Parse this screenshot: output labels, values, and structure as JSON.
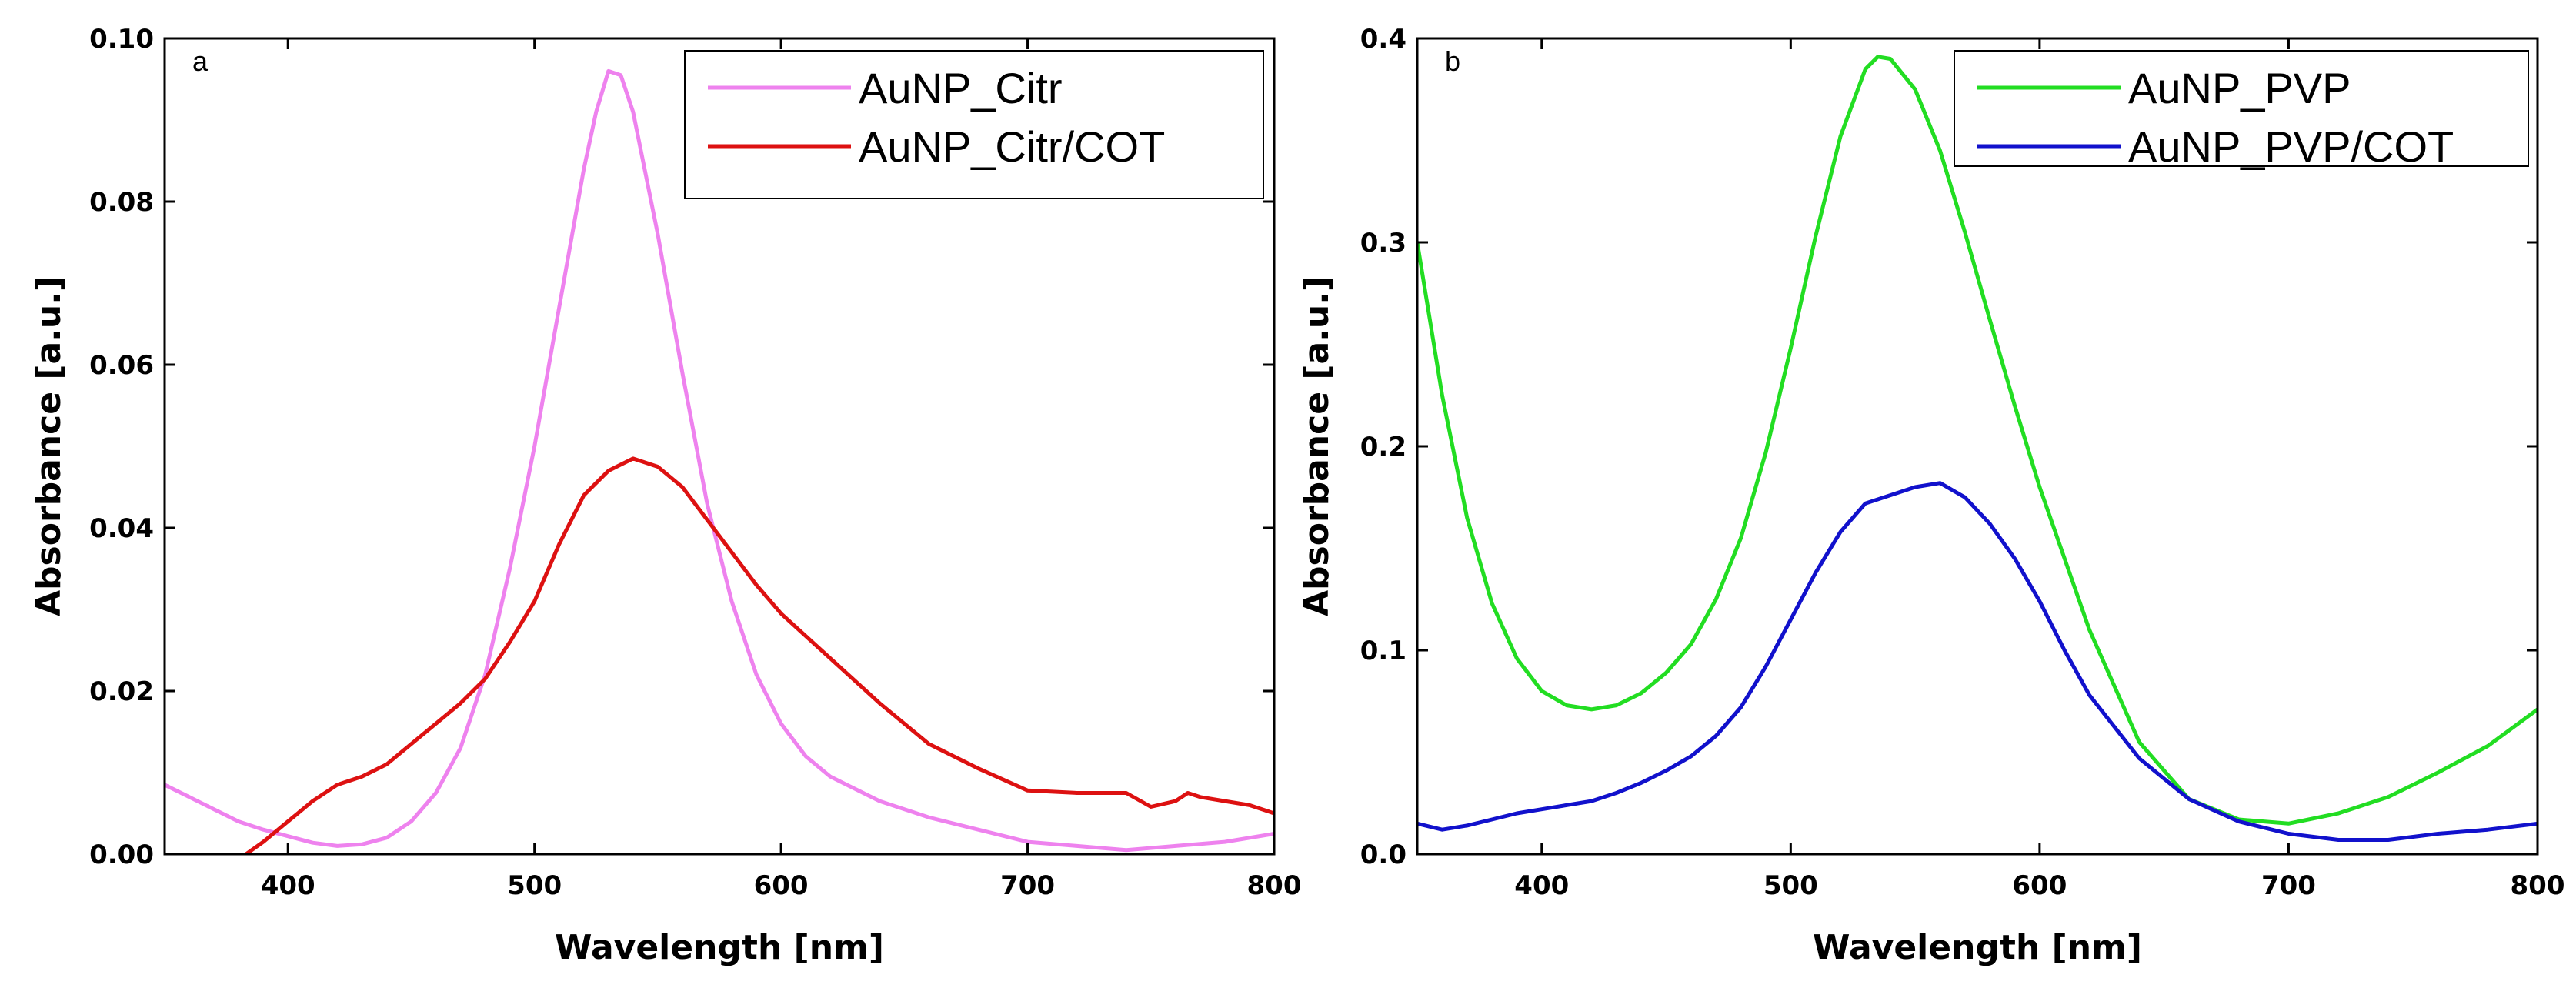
{
  "chart_data": [
    {
      "type": "line",
      "panel_label": "a",
      "xlabel": "Wavelength [nm]",
      "ylabel": "Absorbance [a.u.]",
      "xlim": [
        350,
        800
      ],
      "ylim": [
        0,
        0.1
      ],
      "xticks": [
        400,
        500,
        600,
        700,
        800
      ],
      "yticks": [
        0,
        0.02,
        0.04,
        0.06,
        0.08,
        0.1
      ],
      "ytick_labels": [
        "0.00",
        "0.02",
        "0.04",
        "0.06",
        "0.08",
        "0.10"
      ],
      "legend_position": "top-right",
      "series": [
        {
          "name": "AuNP_Citr",
          "color": "#ee82ee",
          "x": [
            350,
            360,
            370,
            380,
            390,
            400,
            410,
            420,
            430,
            440,
            450,
            460,
            470,
            480,
            490,
            500,
            510,
            520,
            525,
            530,
            535,
            540,
            550,
            560,
            570,
            580,
            590,
            600,
            610,
            620,
            640,
            660,
            680,
            700,
            720,
            740,
            760,
            780,
            800
          ],
          "y": [
            0.0085,
            0.007,
            0.0055,
            0.004,
            0.003,
            0.0022,
            0.0014,
            0.001,
            0.0012,
            0.002,
            0.004,
            0.0075,
            0.013,
            0.022,
            0.035,
            0.05,
            0.067,
            0.084,
            0.091,
            0.096,
            0.0955,
            0.091,
            0.076,
            0.059,
            0.043,
            0.031,
            0.022,
            0.016,
            0.012,
            0.0095,
            0.0065,
            0.0045,
            0.003,
            0.0015,
            0.001,
            0.0005,
            0.001,
            0.0015,
            0.0025
          ]
        },
        {
          "name": "AuNP_Citr/COT",
          "color": "#dd1111",
          "x": [
            383,
            390,
            400,
            410,
            420,
            430,
            440,
            450,
            460,
            470,
            480,
            490,
            500,
            510,
            520,
            530,
            540,
            550,
            560,
            570,
            580,
            590,
            600,
            620,
            640,
            660,
            680,
            700,
            720,
            740,
            750,
            760,
            765,
            770,
            780,
            790,
            800
          ],
          "y": [
            0.0,
            0.0015,
            0.004,
            0.0065,
            0.0085,
            0.0095,
            0.011,
            0.0135,
            0.016,
            0.0185,
            0.0215,
            0.026,
            0.031,
            0.038,
            0.044,
            0.047,
            0.0485,
            0.0475,
            0.045,
            0.041,
            0.037,
            0.033,
            0.0295,
            0.024,
            0.0185,
            0.0135,
            0.0105,
            0.0078,
            0.0075,
            0.0075,
            0.0058,
            0.0065,
            0.0075,
            0.007,
            0.0065,
            0.006,
            0.005
          ]
        }
      ]
    },
    {
      "type": "line",
      "panel_label": "b",
      "xlabel": "Wavelength [nm]",
      "ylabel": "Absorbance [a.u.]",
      "xlim": [
        350,
        800
      ],
      "ylim": [
        0,
        0.4
      ],
      "xticks": [
        400,
        500,
        600,
        700,
        800
      ],
      "yticks": [
        0,
        0.1,
        0.2,
        0.3,
        0.4
      ],
      "ytick_labels": [
        "0.0",
        "0.1",
        "0.2",
        "0.3",
        "0.4"
      ],
      "legend_position": "top-right",
      "series": [
        {
          "name": "AuNP_PVP",
          "color": "#22dd22",
          "x": [
            350,
            360,
            370,
            380,
            390,
            400,
            410,
            420,
            430,
            440,
            450,
            460,
            470,
            480,
            490,
            500,
            510,
            520,
            530,
            535,
            540,
            550,
            560,
            570,
            580,
            590,
            600,
            620,
            640,
            660,
            680,
            700,
            720,
            740,
            760,
            780,
            800
          ],
          "y": [
            0.3,
            0.225,
            0.165,
            0.123,
            0.096,
            0.08,
            0.073,
            0.071,
            0.073,
            0.079,
            0.089,
            0.103,
            0.125,
            0.155,
            0.197,
            0.248,
            0.303,
            0.352,
            0.385,
            0.391,
            0.39,
            0.375,
            0.345,
            0.305,
            0.262,
            0.22,
            0.18,
            0.11,
            0.055,
            0.027,
            0.017,
            0.015,
            0.02,
            0.028,
            0.04,
            0.053,
            0.071
          ]
        },
        {
          "name": "AuNP_PVP/COT",
          "color": "#1111cc",
          "x": [
            350,
            360,
            370,
            380,
            390,
            400,
            410,
            420,
            430,
            440,
            450,
            460,
            470,
            480,
            490,
            500,
            510,
            520,
            530,
            540,
            550,
            560,
            570,
            580,
            590,
            600,
            610,
            620,
            640,
            660,
            680,
            700,
            720,
            740,
            760,
            780,
            800
          ],
          "y": [
            0.015,
            0.012,
            0.014,
            0.017,
            0.02,
            0.022,
            0.024,
            0.026,
            0.03,
            0.035,
            0.041,
            0.048,
            0.058,
            0.072,
            0.092,
            0.115,
            0.138,
            0.158,
            0.172,
            0.176,
            0.18,
            0.182,
            0.175,
            0.162,
            0.145,
            0.124,
            0.1,
            0.078,
            0.047,
            0.027,
            0.016,
            0.01,
            0.007,
            0.007,
            0.01,
            0.012,
            0.015
          ]
        }
      ]
    }
  ]
}
